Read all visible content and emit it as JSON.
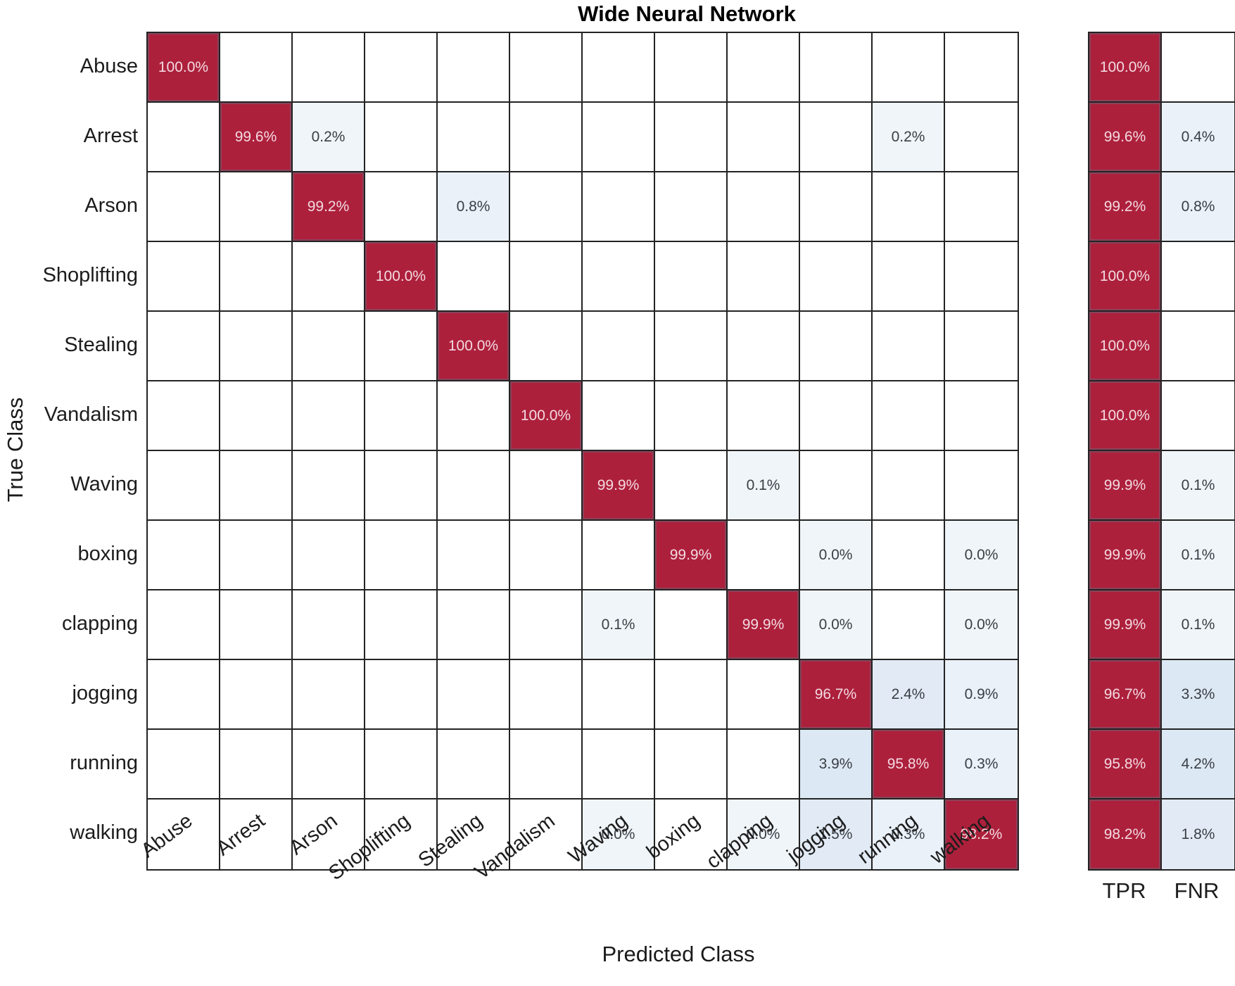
{
  "title": "Wide Neural Network",
  "xlabel": "Predicted Class",
  "ylabel": "True Class",
  "summary_headers": {
    "tpr": "TPR",
    "fnr": "FNR"
  },
  "colors": {
    "diagonal_red": "#AD203C",
    "diagonal_text": "#F3DAE1",
    "offdiag_text": "#3A3E45",
    "blue_faint": "#F0F5FA",
    "blue_light": "#EAF1F8",
    "blue_mid": "#E2EBF5",
    "blue_deep": "#DCE8F3",
    "grid_line": "#232323",
    "empty_cell": "#FFFFFF"
  },
  "chart_data": {
    "type": "heatmap",
    "title": "Wide Neural Network",
    "xlabel": "Predicted Class",
    "ylabel": "True Class",
    "legend_position": "none",
    "categories": [
      "Abuse",
      "Arrest",
      "Arson",
      "Shoplifting",
      "Stealing",
      "Vandalism",
      "Waving",
      "boxing",
      "clapping",
      "jogging",
      "running",
      "walking"
    ],
    "value_format": "percent_one_decimal",
    "matrix_percent": [
      [
        100.0,
        null,
        null,
        null,
        null,
        null,
        null,
        null,
        null,
        null,
        null,
        null
      ],
      [
        null,
        99.6,
        0.2,
        null,
        null,
        null,
        null,
        null,
        null,
        null,
        0.2,
        null
      ],
      [
        null,
        null,
        99.2,
        null,
        0.8,
        null,
        null,
        null,
        null,
        null,
        null,
        null
      ],
      [
        null,
        null,
        null,
        100.0,
        null,
        null,
        null,
        null,
        null,
        null,
        null,
        null
      ],
      [
        null,
        null,
        null,
        null,
        100.0,
        null,
        null,
        null,
        null,
        null,
        null,
        null
      ],
      [
        null,
        null,
        null,
        null,
        null,
        100.0,
        null,
        null,
        null,
        null,
        null,
        null
      ],
      [
        null,
        null,
        null,
        null,
        null,
        null,
        99.9,
        null,
        0.1,
        null,
        null,
        null
      ],
      [
        null,
        null,
        null,
        null,
        null,
        null,
        null,
        99.9,
        null,
        0.0,
        null,
        0.0
      ],
      [
        null,
        null,
        null,
        null,
        null,
        null,
        0.1,
        null,
        99.9,
        0.0,
        null,
        0.0
      ],
      [
        null,
        null,
        null,
        null,
        null,
        null,
        null,
        null,
        null,
        96.7,
        2.4,
        0.9
      ],
      [
        null,
        null,
        null,
        null,
        null,
        null,
        null,
        null,
        null,
        3.9,
        95.8,
        0.3
      ],
      [
        null,
        null,
        null,
        null,
        null,
        null,
        0.0,
        null,
        0.0,
        1.5,
        0.3,
        98.2
      ]
    ],
    "tpr": [
      100.0,
      99.6,
      99.2,
      100.0,
      100.0,
      100.0,
      99.9,
      99.9,
      99.9,
      96.7,
      95.8,
      98.2
    ],
    "fnr": [
      null,
      0.4,
      0.8,
      null,
      null,
      null,
      0.1,
      0.1,
      0.1,
      3.3,
      4.2,
      1.8
    ]
  }
}
